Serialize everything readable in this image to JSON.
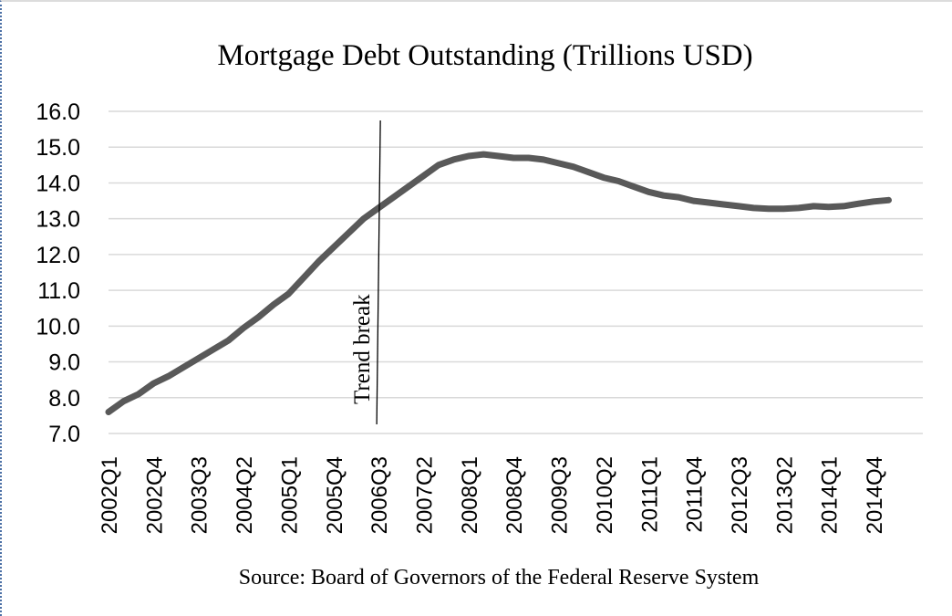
{
  "chart_data": {
    "type": "line",
    "title": "Mortgage Debt Outstanding (Trillions USD)",
    "source": "Source: Board of Governors of the Federal Reserve System",
    "annotation": "Trend break",
    "annotation_x": "2006Q3",
    "ylim": [
      7.0,
      16.0
    ],
    "yticks": [
      "7.0",
      "8.0",
      "9.0",
      "10.0",
      "11.0",
      "12.0",
      "13.0",
      "14.0",
      "15.0",
      "16.0"
    ],
    "xtick_labels": [
      "2002Q1",
      "2002Q4",
      "2003Q3",
      "2004Q2",
      "2005Q1",
      "2005Q4",
      "2006Q3",
      "2007Q2",
      "2008Q1",
      "2008Q4",
      "2009Q3",
      "2010Q2",
      "2011Q1",
      "2011Q4",
      "2012Q3",
      "2013Q2",
      "2014Q1",
      "2014Q4"
    ],
    "grid": true,
    "series_color": "#595959",
    "x": [
      "2002Q1",
      "2002Q2",
      "2002Q3",
      "2002Q4",
      "2003Q1",
      "2003Q2",
      "2003Q3",
      "2003Q4",
      "2004Q1",
      "2004Q2",
      "2004Q3",
      "2004Q4",
      "2005Q1",
      "2005Q2",
      "2005Q3",
      "2005Q4",
      "2006Q1",
      "2006Q2",
      "2006Q3",
      "2006Q4",
      "2007Q1",
      "2007Q2",
      "2007Q3",
      "2007Q4",
      "2008Q1",
      "2008Q2",
      "2008Q3",
      "2008Q4",
      "2009Q1",
      "2009Q2",
      "2009Q3",
      "2009Q4",
      "2010Q1",
      "2010Q2",
      "2010Q3",
      "2010Q4",
      "2011Q1",
      "2011Q2",
      "2011Q3",
      "2011Q4",
      "2012Q1",
      "2012Q2",
      "2012Q3",
      "2012Q4",
      "2013Q1",
      "2013Q2",
      "2013Q3",
      "2013Q4",
      "2014Q1",
      "2014Q2",
      "2014Q3",
      "2014Q4",
      "2015Q1"
    ],
    "series": [
      {
        "values": [
          7.6,
          7.9,
          8.1,
          8.4,
          8.6,
          8.85,
          9.1,
          9.35,
          9.6,
          9.95,
          10.25,
          10.6,
          10.9,
          11.35,
          11.8,
          12.2,
          12.6,
          13.0,
          13.3,
          13.6,
          13.9,
          14.2,
          14.5,
          14.65,
          14.75,
          14.8,
          14.75,
          14.7,
          14.7,
          14.65,
          14.55,
          14.45,
          14.3,
          14.15,
          14.05,
          13.9,
          13.75,
          13.65,
          13.6,
          13.5,
          13.45,
          13.4,
          13.35,
          13.3,
          13.28,
          13.28,
          13.3,
          13.35,
          13.33,
          13.35,
          13.42,
          13.48,
          13.52
        ]
      }
    ]
  }
}
